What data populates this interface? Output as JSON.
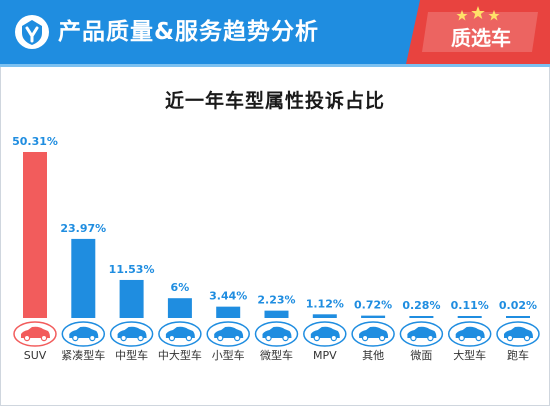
{
  "header": {
    "title": "产品质量&服务趋势分析",
    "badge_label": "质选车"
  },
  "colors": {
    "header_bg": "#1f8de0",
    "highlight_bar": "#f25c5c",
    "bar": "#1f8de0",
    "label_blue": "#1f8de0",
    "highlight_label": "#1f8de0",
    "badge_bg": "#e8433f"
  },
  "chart_data": {
    "type": "bar",
    "title": "近一年车型属性投诉占比",
    "categories": [
      "SUV",
      "紧凑型车",
      "中型车",
      "中大型车",
      "小型车",
      "微型车",
      "MPV",
      "其他",
      "微面",
      "大型车",
      "跑车"
    ],
    "values": [
      50.31,
      23.97,
      11.53,
      6,
      3.44,
      2.23,
      1.12,
      0.72,
      0.28,
      0.11,
      0.02
    ],
    "value_labels": [
      "50.31%",
      "23.97%",
      "11.53%",
      "6%",
      "3.44%",
      "2.23%",
      "1.12%",
      "0.72%",
      "0.28%",
      "0.11%",
      "0.02%"
    ],
    "unit": "%",
    "highlight_index": 0,
    "ylim": [
      0,
      50.31
    ],
    "grid": false,
    "legend": "none"
  }
}
